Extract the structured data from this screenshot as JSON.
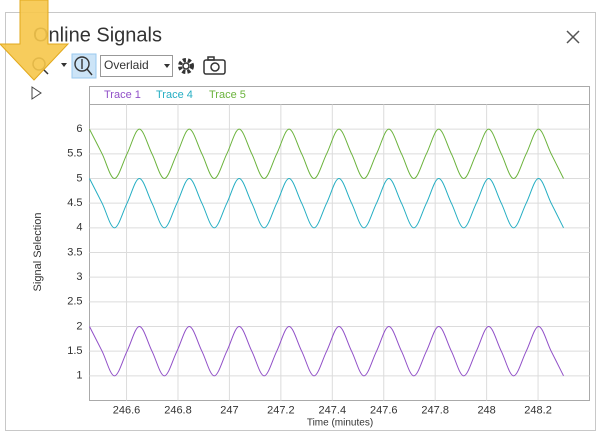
{
  "window": {
    "title": "Online Signals",
    "view_mode": "Overlaid"
  },
  "chart_data": {
    "type": "line",
    "x_label": "Time (minutes)",
    "y_label": "Signal Selection",
    "x": [
      246.456,
      246.505,
      246.553,
      246.602,
      246.65,
      246.699,
      246.747,
      246.796,
      246.844,
      246.893,
      246.941,
      246.99,
      247.038,
      247.087,
      247.135,
      247.184,
      247.232,
      247.281,
      247.329,
      247.378,
      247.426,
      247.475,
      247.523,
      247.572,
      247.62,
      247.669,
      247.717,
      247.766,
      247.814,
      247.863,
      247.911,
      247.96,
      248.008,
      248.057,
      248.105,
      248.154,
      248.202,
      248.251,
      248.299
    ],
    "series": [
      {
        "name": "Trace 1",
        "color": "#9150c8",
        "values": [
          2,
          1.5,
          1,
          1.5,
          2,
          1.5,
          1,
          1.5,
          2,
          1.5,
          1,
          1.5,
          2,
          1.5,
          1,
          1.5,
          2,
          1.5,
          1,
          1.5,
          2,
          1.5,
          1,
          1.5,
          2,
          1.5,
          1,
          1.5,
          2,
          1.5,
          1,
          1.5,
          2,
          1.5,
          1,
          1.5,
          2,
          1.5,
          1
        ]
      },
      {
        "name": "Trace 4",
        "color": "#25aec3",
        "values": [
          5,
          4.5,
          4,
          4.5,
          5,
          4.5,
          4,
          4.5,
          5,
          4.5,
          4,
          4.5,
          5,
          4.5,
          4,
          4.5,
          5,
          4.5,
          4,
          4.5,
          5,
          4.5,
          4,
          4.5,
          5,
          4.5,
          4,
          4.5,
          5,
          4.5,
          4,
          4.5,
          5,
          4.5,
          4,
          4.5,
          5,
          4.5,
          4
        ]
      },
      {
        "name": "Trace 5",
        "color": "#6bb33c",
        "values": [
          6,
          5.5,
          5,
          5.5,
          6,
          5.5,
          5,
          5.5,
          6,
          5.5,
          5,
          5.5,
          6,
          5.5,
          5,
          5.5,
          6,
          5.5,
          5,
          5.5,
          6,
          5.5,
          5,
          5.5,
          6,
          5.5,
          5,
          5.5,
          6,
          5.5,
          5,
          5.5,
          6,
          5.5,
          5,
          5.5,
          6,
          5.5,
          5
        ]
      }
    ],
    "xlim": [
      246.456,
      248.4
    ],
    "ylim": [
      0.5,
      6.5
    ],
    "xticks": [
      246.6,
      246.8,
      247,
      247.2,
      247.4,
      247.6,
      247.8,
      248,
      248.2
    ],
    "yticks": [
      1,
      1.5,
      2,
      2.5,
      3,
      3.5,
      4,
      4.5,
      5,
      5.5,
      6
    ],
    "grid": true
  }
}
